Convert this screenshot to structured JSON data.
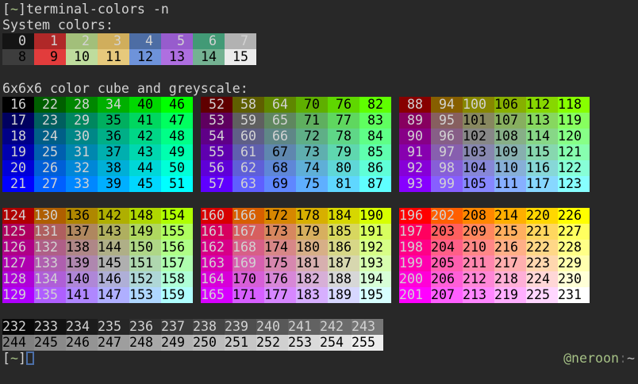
{
  "terminal": {
    "bg": "#282828",
    "fg": "#d2d2d2",
    "cell_fg_light": "#d2d2d2",
    "cell_fg_dark": "#000000",
    "luma_threshold": 127
  },
  "command_line": {
    "bracket_open": "[",
    "tilde": "~",
    "bracket_close": "]",
    "command": "terminal-colors -n",
    "tilde_color": "#a5c085"
  },
  "labels": {
    "system": "System colors:",
    "cube": "6x6x6 color cube and greyscale:"
  },
  "system_colors": {
    "row1": {
      "fg": "#d2d2d2",
      "cells": [
        {
          "n": 0,
          "bg": "#141414"
        },
        {
          "n": 1,
          "bg": "#b02828"
        },
        {
          "n": 2,
          "bg": "#a2bf7a"
        },
        {
          "n": 3,
          "bg": "#d0ae5c"
        },
        {
          "n": 4,
          "bg": "#4d6da4"
        },
        {
          "n": 5,
          "bg": "#975ccd"
        },
        {
          "n": 6,
          "bg": "#429a76"
        },
        {
          "n": 7,
          "bg": "#b2b2b2"
        }
      ]
    },
    "row2": {
      "fg": "#000000",
      "cells": [
        {
          "n": 8,
          "bg": "#3d3d3d"
        },
        {
          "n": 9,
          "bg": "#e23c3c"
        },
        {
          "n": 10,
          "bg": "#bedc9d"
        },
        {
          "n": 11,
          "bg": "#e6c97c"
        },
        {
          "n": 12,
          "bg": "#6e93da"
        },
        {
          "n": 13,
          "bg": "#ae6fe0"
        },
        {
          "n": 14,
          "bg": "#74b292"
        },
        {
          "n": 15,
          "bg": "#ececec"
        }
      ]
    }
  },
  "cube": {
    "levels": [
      0,
      95,
      135,
      175,
      215,
      255
    ],
    "upper_block_starts": [
      16,
      52,
      88
    ],
    "lower_block_starts": [
      124,
      160,
      196
    ],
    "first_index": 16,
    "last_index": 231,
    "cols_step": 6,
    "rows_step": 1
  },
  "greyscale": {
    "rows": [
      {
        "start": 232,
        "end": 243
      },
      {
        "start": 244,
        "end": 255
      }
    ],
    "count": 12,
    "base_value": 8,
    "step": 10
  },
  "prompt": {
    "bracket_open": "[",
    "tilde": "~",
    "bracket_close": "]",
    "tilde_color": "#a5c085",
    "cursor_color": "#4c6fa8"
  },
  "rprompt": {
    "user": "@neroon",
    "colon": ":",
    "path": "~",
    "user_color": "#a5c085",
    "colon_color": "#5f5f5f",
    "path_color": "#b8b8b8"
  }
}
